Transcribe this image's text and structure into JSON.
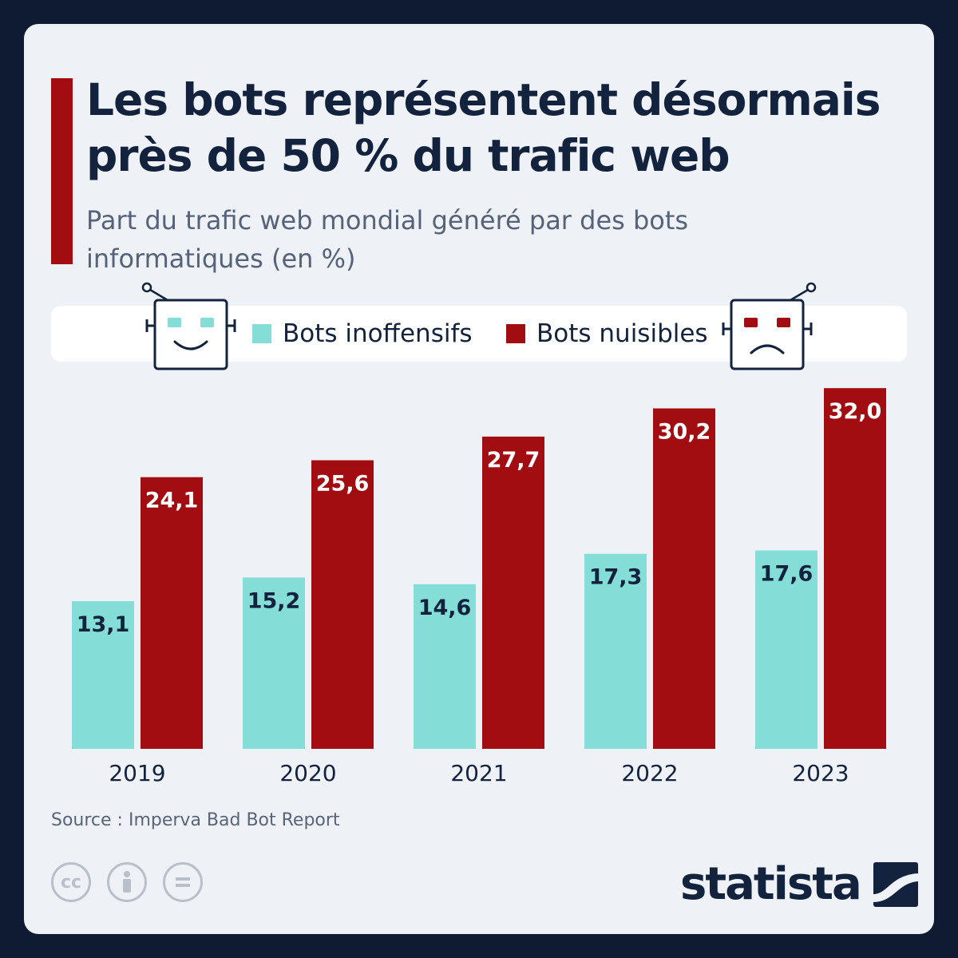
{
  "title": "Les bots représentent désormais près de 50 % du trafic web",
  "subtitle": "Part du trafic web mondial généré par des bots informatiques (en %)",
  "legend": [
    {
      "label": "Bots inoffensifs",
      "color": "#84ded7"
    },
    {
      "label": "Bots nuisibles",
      "color": "#a20d12"
    }
  ],
  "source": "Source : Imperva Bad Bot Report",
  "brand": "statista",
  "license_icons": [
    "cc-icon",
    "attribution-icon",
    "no-derivatives-icon"
  ],
  "icons": {
    "happy_robot": "happy-robot-icon",
    "sad_robot": "sad-robot-icon"
  },
  "chart_data": {
    "type": "bar",
    "categories": [
      "2019",
      "2020",
      "2021",
      "2022",
      "2023"
    ],
    "series": [
      {
        "name": "Bots inoffensifs",
        "color": "#84ded7",
        "values": [
          13.1,
          15.2,
          14.6,
          17.3,
          17.6
        ],
        "labels": [
          "13,1",
          "15,2",
          "14,6",
          "17,3",
          "17,6"
        ]
      },
      {
        "name": "Bots nuisibles",
        "color": "#a20d12",
        "values": [
          24.1,
          25.6,
          27.7,
          30.2,
          32.0
        ],
        "labels": [
          "24,1",
          "25,6",
          "27,7",
          "30,2",
          "32,0"
        ]
      }
    ],
    "title": "Les bots représentent désormais près de 50 % du trafic web",
    "xlabel": "",
    "ylabel": "",
    "ylim": [
      0,
      32
    ],
    "grid": false,
    "legend_position": "top"
  }
}
